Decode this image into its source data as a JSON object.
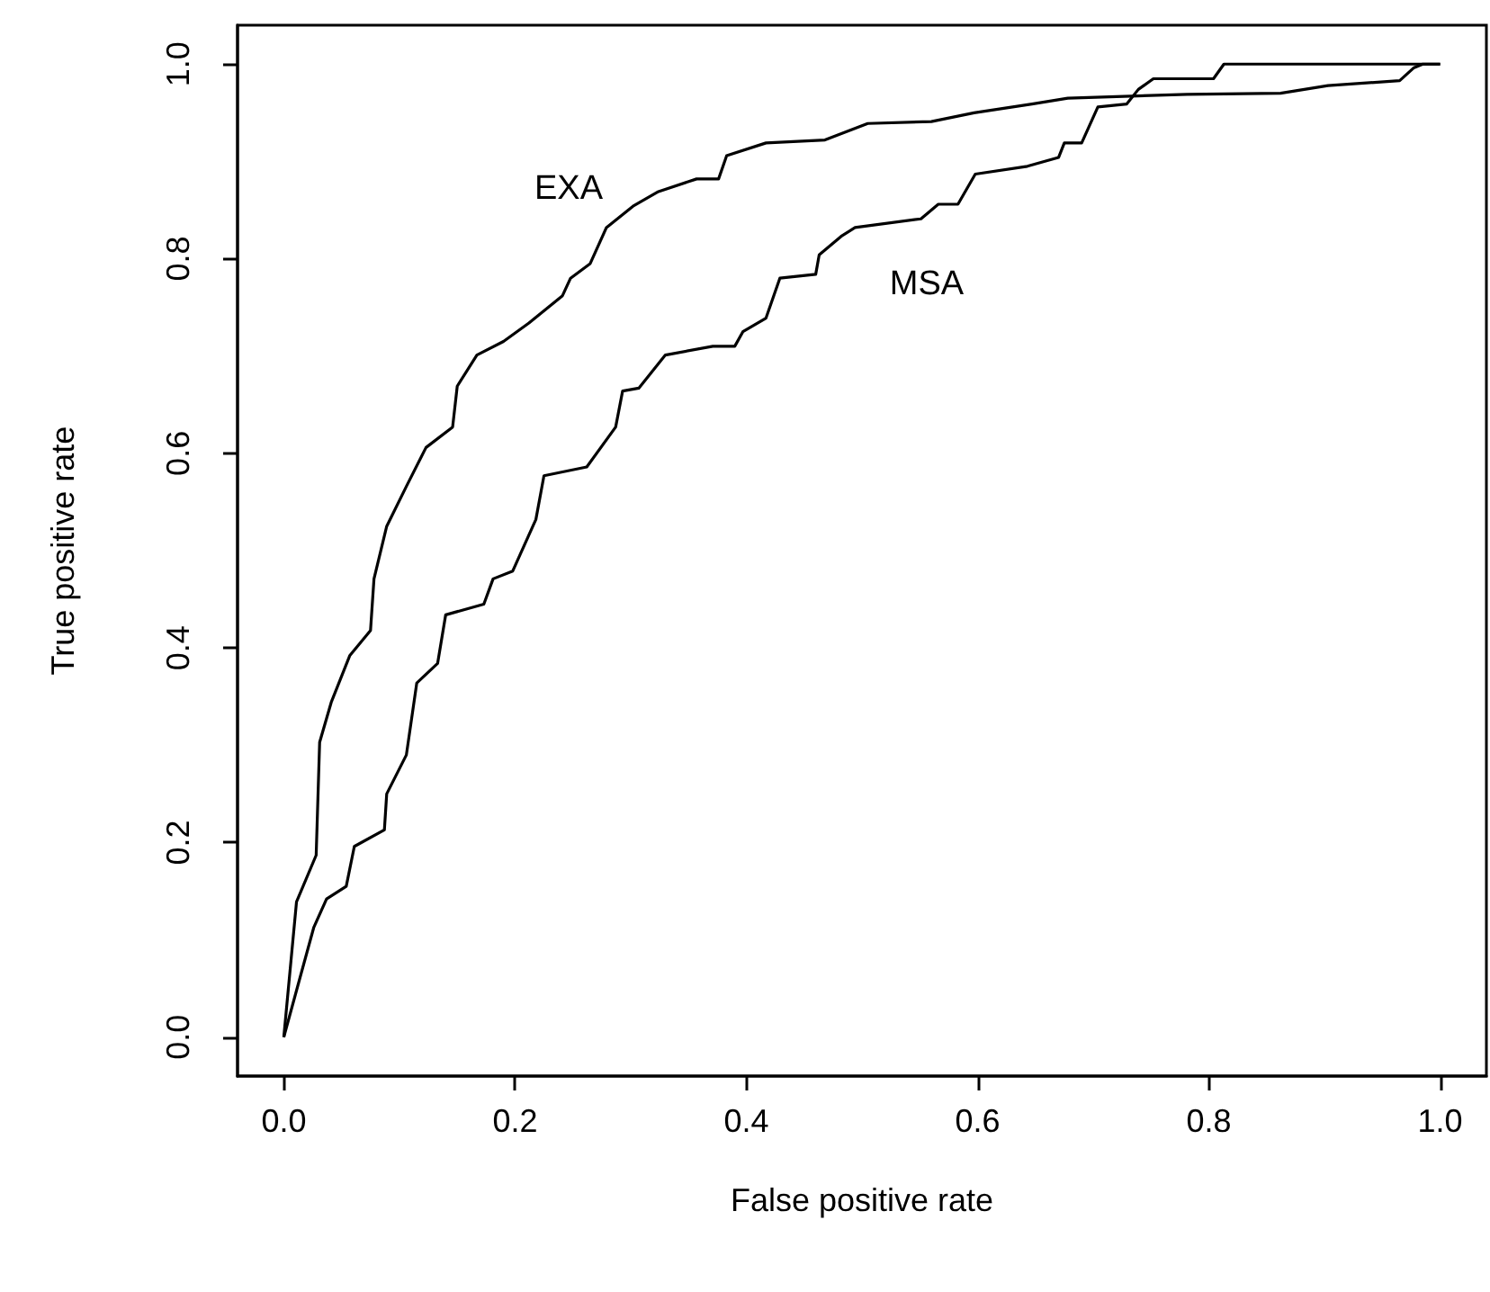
{
  "chart_data": {
    "type": "line",
    "xlabel": "False positive rate",
    "ylabel": "True positive rate",
    "xlim": [
      -0.04,
      1.04
    ],
    "ylim": [
      -0.04,
      1.04
    ],
    "xticks": [
      {
        "value": 0,
        "label": "0.0"
      },
      {
        "value": 0.2,
        "label": "0.2"
      },
      {
        "value": 0.4,
        "label": "0.4"
      },
      {
        "value": 0.6,
        "label": "0.6"
      },
      {
        "value": 0.8,
        "label": "0.8"
      },
      {
        "value": 1,
        "label": "1.0"
      }
    ],
    "yticks": [
      {
        "value": 0,
        "label": "0.0"
      },
      {
        "value": 0.2,
        "label": "0.2"
      },
      {
        "value": 0.4,
        "label": "0.4"
      },
      {
        "value": 0.6,
        "label": "0.6"
      },
      {
        "value": 0.8,
        "label": "0.8"
      },
      {
        "value": 1,
        "label": "1.0"
      }
    ],
    "grid": false,
    "marker": "none",
    "line_style": "solid",
    "series": [
      {
        "name": "EXA",
        "color": "#000000",
        "x": [
          0,
          0.011,
          0.028,
          0.031,
          0.041,
          0.057,
          0.075,
          0.078,
          0.089,
          0.106,
          0.123,
          0.146,
          0.15,
          0.167,
          0.19,
          0.212,
          0.241,
          0.248,
          0.265,
          0.279,
          0.302,
          0.324,
          0.357,
          0.376,
          0.383,
          0.417,
          0.468,
          0.505,
          0.56,
          0.597,
          0.647,
          0.678,
          0.781,
          0.862,
          0.903,
          0.965,
          0.977,
          0.985,
          1
        ],
        "values": [
          0,
          0.139,
          0.187,
          0.303,
          0.344,
          0.392,
          0.418,
          0.471,
          0.525,
          0.566,
          0.606,
          0.627,
          0.669,
          0.701,
          0.715,
          0.734,
          0.762,
          0.78,
          0.795,
          0.832,
          0.854,
          0.869,
          0.882,
          0.882,
          0.906,
          0.919,
          0.922,
          0.939,
          0.941,
          0.95,
          0.959,
          0.965,
          0.969,
          0.97,
          0.978,
          0.983,
          0.996,
          1,
          1
        ]
      },
      {
        "name": "MSA",
        "color": "#000000",
        "x": [
          0,
          0.014,
          0.026,
          0.037,
          0.054,
          0.061,
          0.087,
          0.089,
          0.106,
          0.115,
          0.133,
          0.14,
          0.173,
          0.181,
          0.198,
          0.218,
          0.225,
          0.262,
          0.287,
          0.293,
          0.307,
          0.33,
          0.371,
          0.39,
          0.397,
          0.417,
          0.429,
          0.46,
          0.463,
          0.482,
          0.494,
          0.551,
          0.566,
          0.583,
          0.598,
          0.643,
          0.67,
          0.675,
          0.69,
          0.704,
          0.729,
          0.739,
          0.752,
          0.804,
          0.813,
          1
        ],
        "values": [
          0,
          0.061,
          0.113,
          0.142,
          0.155,
          0.196,
          0.213,
          0.25,
          0.29,
          0.364,
          0.384,
          0.434,
          0.445,
          0.471,
          0.479,
          0.532,
          0.577,
          0.586,
          0.627,
          0.664,
          0.667,
          0.701,
          0.71,
          0.71,
          0.725,
          0.739,
          0.78,
          0.784,
          0.804,
          0.823,
          0.832,
          0.841,
          0.856,
          0.856,
          0.887,
          0.895,
          0.904,
          0.919,
          0.919,
          0.956,
          0.959,
          0.974,
          0.985,
          0.985,
          1,
          1
        ]
      }
    ]
  }
}
